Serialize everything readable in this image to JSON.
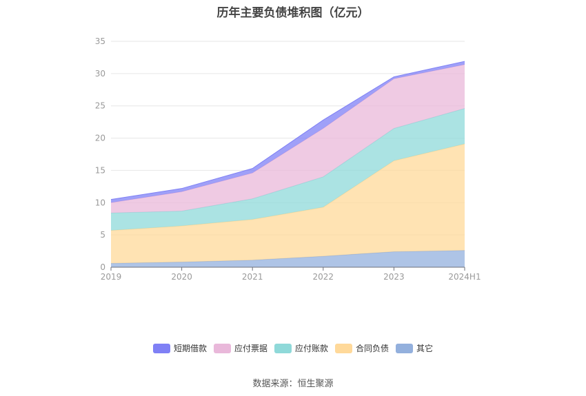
{
  "title": "历年主要负债堆积图（亿元）",
  "source": "数据来源：恒生聚源",
  "chart_data": {
    "type": "area",
    "stacked": true,
    "title": "历年主要负债堆积图（亿元）",
    "xlabel": "",
    "ylabel": "",
    "categories": [
      "2019",
      "2020",
      "2021",
      "2022",
      "2023",
      "2024H1"
    ],
    "ylim": [
      0,
      35
    ],
    "yticks": [
      0,
      5,
      10,
      15,
      20,
      25,
      30,
      35
    ],
    "grid": true,
    "legend_position": "bottom",
    "series": [
      {
        "name": "其它",
        "color": "#93b0dd",
        "values": [
          0.6,
          0.8,
          1.1,
          1.7,
          2.4,
          2.6
        ]
      },
      {
        "name": "合同负债",
        "color": "#ffd99a",
        "values": [
          5.1,
          5.6,
          6.3,
          7.6,
          14.1,
          16.5
        ]
      },
      {
        "name": "应付账款",
        "color": "#8fd9d9",
        "values": [
          2.7,
          2.3,
          3.2,
          4.7,
          5.0,
          5.5
        ]
      },
      {
        "name": "应付票据",
        "color": "#e9b8da",
        "values": [
          1.6,
          3.0,
          4.0,
          7.5,
          7.7,
          6.8
        ]
      },
      {
        "name": "短期借款",
        "color": "#7f80f5",
        "values": [
          0.5,
          0.5,
          0.7,
          1.3,
          0.3,
          0.5
        ]
      }
    ]
  }
}
